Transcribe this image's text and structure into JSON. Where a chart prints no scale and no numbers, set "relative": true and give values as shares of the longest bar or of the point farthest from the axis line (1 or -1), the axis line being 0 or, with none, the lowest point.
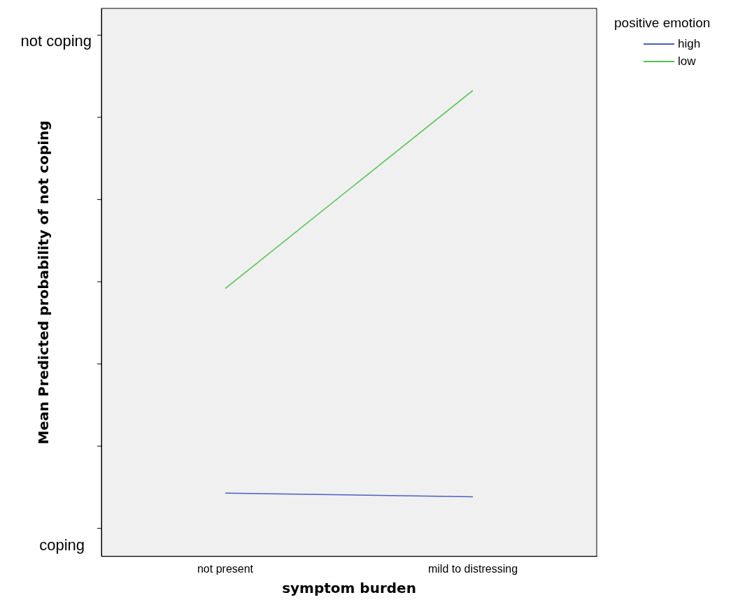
{
  "chart_data": {
    "type": "line",
    "relative": true,
    "xlabel": "symptom burden",
    "ylabel": "Mean Predicted probability of not coping",
    "legend_title": "positive emotion",
    "legend": "top right",
    "categories": [
      "not present",
      "mild to distressing"
    ],
    "series": [
      {
        "name": "high",
        "color": "#4a5fc1",
        "values": [
          0.136,
          0.128
        ]
      },
      {
        "name": "low",
        "color": "#4ec34e",
        "values": [
          0.575,
          1
        ]
      }
    ],
    "annotations": [
      "not coping",
      "coping"
    ],
    "marker": "none",
    "line_style": "solid",
    "grid": false
  }
}
